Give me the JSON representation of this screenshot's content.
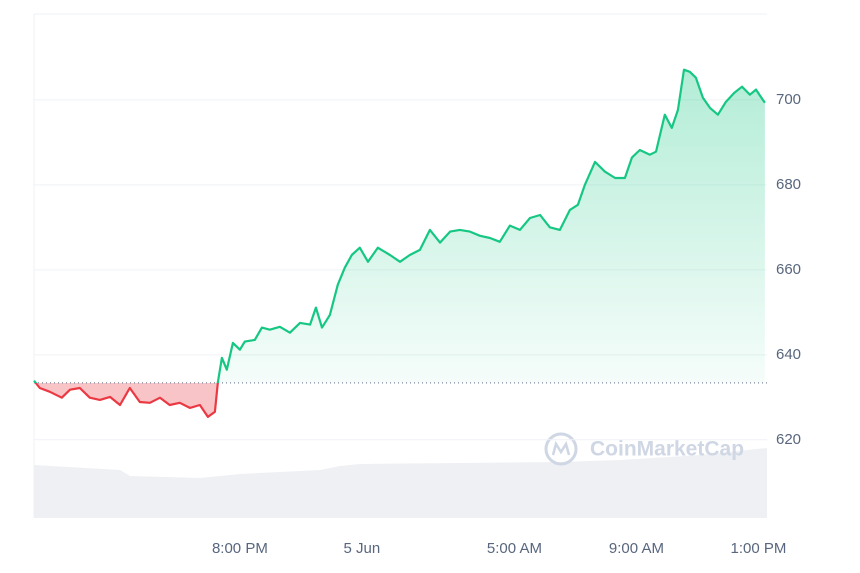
{
  "chart_data": {
    "type": "line",
    "watermark": "CoinMarketCap",
    "x": [
      -10.75,
      -10.56,
      -10.23,
      -9.84,
      -9.57,
      -9.25,
      -8.92,
      -8.59,
      -8.26,
      -7.93,
      -7.61,
      -7.28,
      -6.95,
      -6.62,
      -6.3,
      -5.97,
      -5.64,
      -5.31,
      -5.05,
      -4.82,
      -4.72,
      -4.59,
      -4.43,
      -4.23,
      -4.0,
      -3.84,
      -3.51,
      -3.28,
      -3.02,
      -2.69,
      -2.36,
      -2.03,
      -1.7,
      -1.51,
      -1.31,
      -1.05,
      -0.79,
      -0.56,
      -0.33,
      -0.07,
      0.2,
      0.52,
      0.92,
      1.25,
      1.57,
      1.9,
      2.23,
      2.56,
      2.89,
      3.21,
      3.54,
      3.87,
      4.2,
      4.52,
      4.85,
      5.18,
      5.51,
      5.84,
      6.16,
      6.49,
      6.82,
      7.08,
      7.31,
      7.64,
      7.97,
      8.3,
      8.62,
      8.85,
      9.11,
      9.44,
      9.64,
      9.93,
      10.16,
      10.36,
      10.56,
      10.75,
      10.95,
      11.18,
      11.41,
      11.67,
      11.93,
      12.2,
      12.46,
      12.72,
      12.92,
      13.05,
      13.21
    ],
    "series": [
      {
        "name": "Price",
        "values": [
          633.9,
          632.2,
          631.3,
          629.9,
          631.8,
          632.2,
          629.9,
          629.4,
          630.1,
          628.2,
          632.2,
          628.9,
          628.7,
          629.9,
          628.2,
          628.7,
          627.5,
          628.2,
          625.4,
          626.6,
          633.6,
          639.3,
          636.5,
          642.8,
          641.2,
          643.1,
          643.5,
          646.4,
          645.9,
          646.6,
          645.2,
          647.5,
          647.1,
          651.1,
          646.4,
          649.4,
          656.5,
          660.5,
          663.5,
          665.2,
          661.9,
          665.2,
          663.5,
          661.9,
          663.5,
          664.7,
          669.4,
          666.4,
          669.0,
          669.4,
          669.0,
          668.0,
          667.5,
          666.6,
          670.4,
          669.4,
          672.2,
          672.9,
          670.0,
          669.4,
          674.1,
          675.3,
          680.0,
          685.4,
          683.1,
          681.6,
          681.6,
          686.4,
          688.2,
          687.1,
          687.8,
          696.5,
          693.4,
          697.6,
          707.1,
          706.6,
          705.2,
          700.5,
          698.1,
          696.5,
          699.5,
          701.6,
          703.1,
          701.2,
          702.4,
          701.0,
          699.3
        ]
      }
    ],
    "baseline": 633.4,
    "up_color": "#16c784",
    "down_color": "#ea3943",
    "xlim": [
      -10.75,
      13.28
    ],
    "xticks": [
      {
        "value": -4,
        "label": "8:00 PM"
      },
      {
        "value": 0,
        "label": "5 Jun"
      },
      {
        "value": 5,
        "label": "5:00 AM"
      },
      {
        "value": 9,
        "label": "9:00 AM"
      },
      {
        "value": 13,
        "label": "1:00 PM"
      }
    ],
    "ylim": [
      601.6,
      720.2
    ],
    "yticks": [
      620,
      640,
      660,
      680,
      700
    ],
    "grid": true
  }
}
